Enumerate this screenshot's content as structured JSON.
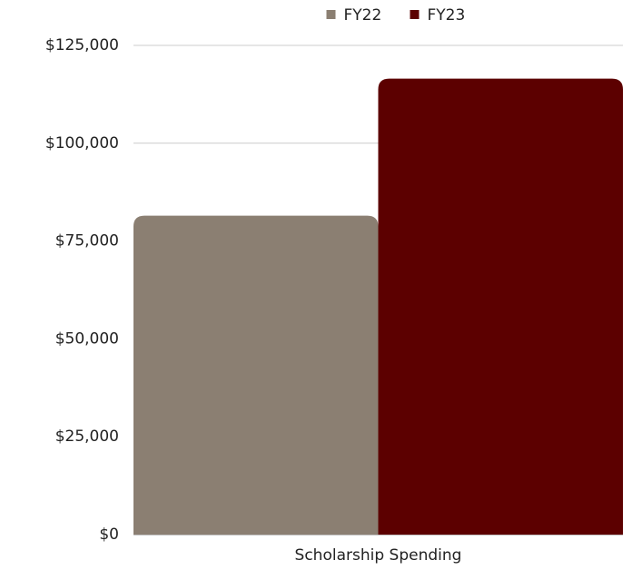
{
  "chart_data": {
    "type": "bar",
    "categories": [
      "Scholarship Spending"
    ],
    "series": [
      {
        "name": "FY22",
        "color": "#8b7f72",
        "values": [
          81500
        ]
      },
      {
        "name": "FY23",
        "color": "#5c0000",
        "values": [
          116500
        ]
      }
    ],
    "ylim": [
      0,
      125000
    ],
    "yticks": [
      {
        "value": 0,
        "label": "$0"
      },
      {
        "value": 25000,
        "label": "$25,000"
      },
      {
        "value": 50000,
        "label": "$50,000"
      },
      {
        "value": 75000,
        "label": "$75,000"
      },
      {
        "value": 100000,
        "label": "$100,000"
      },
      {
        "value": 125000,
        "label": "$125,000"
      }
    ],
    "grid": true,
    "legend": "top"
  }
}
